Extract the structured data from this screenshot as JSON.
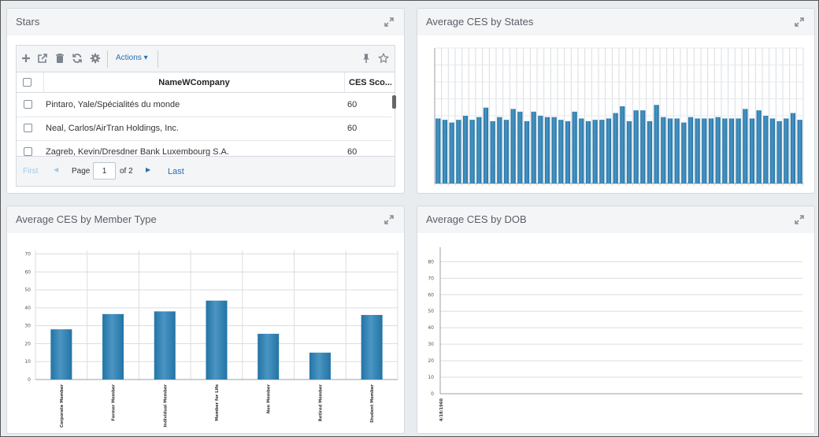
{
  "stars": {
    "title": "Stars",
    "toolbar": {
      "actions_label": "Actions ▾"
    },
    "columns": [
      "NameWCompany",
      "CES Sco..."
    ],
    "rows": [
      {
        "name": "Pintaro, Yale/Spécialités du monde",
        "score": "60"
      },
      {
        "name": "Neal, Carlos/AirTran Holdings, Inc.",
        "score": "60"
      },
      {
        "name": "Zagreb, Kevin/Dresdner Bank Luxembourg S.A.",
        "score": "60"
      }
    ],
    "pager": {
      "first": "First",
      "page_label": "Page",
      "page_value": "1",
      "of_label": "of 2",
      "last": "Last"
    }
  },
  "states_chart": {
    "title": "Average CES by States"
  },
  "member_chart": {
    "title": "Average CES by Member Type"
  },
  "dob_chart": {
    "title": "Average CES by DOB"
  },
  "colors": {
    "bar": "#2274a5",
    "bar_light": "#4b95c3",
    "link": "#2a6fb0",
    "grid": "#d9dde2"
  },
  "icons": [
    "expand-icon",
    "add-icon",
    "external-link-icon",
    "trash-icon",
    "refresh-icon",
    "gear-icon",
    "pin-icon",
    "star-icon"
  ],
  "chart_data": [
    {
      "type": "bar",
      "title": "Average CES by States",
      "ylim": [
        0,
        100
      ],
      "grid": true,
      "tick_labels_visible": false,
      "values": [
        48,
        47,
        45,
        47,
        50,
        47,
        49,
        56,
        46,
        49,
        47,
        55,
        53,
        46,
        53,
        50,
        49,
        49,
        47,
        46,
        53,
        48,
        46,
        47,
        47,
        48,
        52,
        57,
        46,
        54,
        54,
        46,
        58,
        49,
        48,
        48,
        45,
        49,
        48,
        48,
        48,
        49,
        48,
        48,
        48,
        55,
        48,
        54,
        50,
        48,
        46,
        48,
        52,
        47
      ]
    },
    {
      "type": "bar",
      "title": "Average CES by Member Type",
      "categories": [
        "Corporate Member",
        "Former Member",
        "Individual Member",
        "Member for Life",
        "Non Member",
        "Retired Member",
        "Student Member"
      ],
      "values": [
        28,
        36.5,
        38,
        44,
        25.5,
        15,
        36
      ],
      "y_ticks": [
        0,
        10,
        20,
        30,
        40,
        50,
        60,
        70
      ],
      "ylim": [
        0,
        72
      ],
      "grid": true
    },
    {
      "type": "bar",
      "title": "Average CES by DOB",
      "categories": [
        "4/18/1960"
      ],
      "values": [
        0
      ],
      "y_ticks": [
        0,
        10,
        20,
        30,
        40,
        50,
        60,
        70,
        80
      ],
      "ylim": [
        0,
        84
      ],
      "grid": true
    }
  ]
}
